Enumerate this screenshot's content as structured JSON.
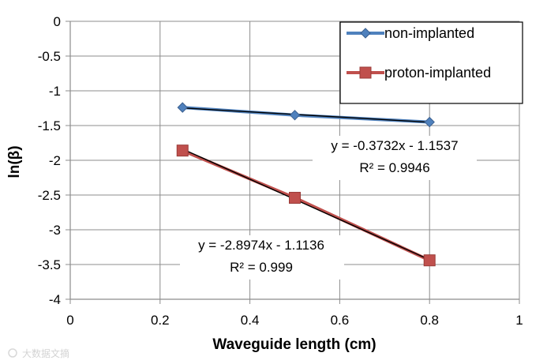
{
  "chart_data": {
    "type": "scatter",
    "title": "",
    "xlabel": "Waveguide length (cm)",
    "ylabel": "ln(β)",
    "xlim": [
      0,
      1
    ],
    "ylim": [
      -4,
      0
    ],
    "x_ticks": [
      0,
      0.2,
      0.4,
      0.6,
      0.8,
      1
    ],
    "y_ticks": [
      0,
      -0.5,
      -1,
      -1.5,
      -2,
      -2.5,
      -3,
      -3.5,
      -4
    ],
    "x_tick_labels": [
      "0",
      "0.2",
      "0.4",
      "0.6",
      "0.8",
      "1"
    ],
    "y_tick_labels": [
      "0",
      "-0.5",
      "-1",
      "-1.5",
      "-2",
      "-2.5",
      "-3",
      "-3.5",
      "-4"
    ],
    "grid": true,
    "legend_position": "top-right",
    "series": [
      {
        "name": "non-implanted",
        "marker": "diamond",
        "color": "#4f81bd",
        "x": [
          0.25,
          0.5,
          0.8
        ],
        "y": [
          -1.24,
          -1.35,
          -1.45
        ],
        "trendline": {
          "slope": -0.3732,
          "intercept": -1.1537,
          "color": "#000000"
        },
        "equation": "y = -0.3732x - 1.1537",
        "r_squared": "R² = 0.9946"
      },
      {
        "name": "proton-implanted",
        "marker": "square",
        "color": "#c0504d",
        "x": [
          0.25,
          0.5,
          0.8
        ],
        "y": [
          -1.86,
          -2.54,
          -3.44
        ],
        "trendline": {
          "slope": -2.8974,
          "intercept": -1.1136,
          "color": "#000000"
        },
        "equation": "y = -2.8974x - 1.1136",
        "r_squared": "R² = 0.999"
      }
    ]
  },
  "watermark": {
    "text": "大数据文摘"
  }
}
